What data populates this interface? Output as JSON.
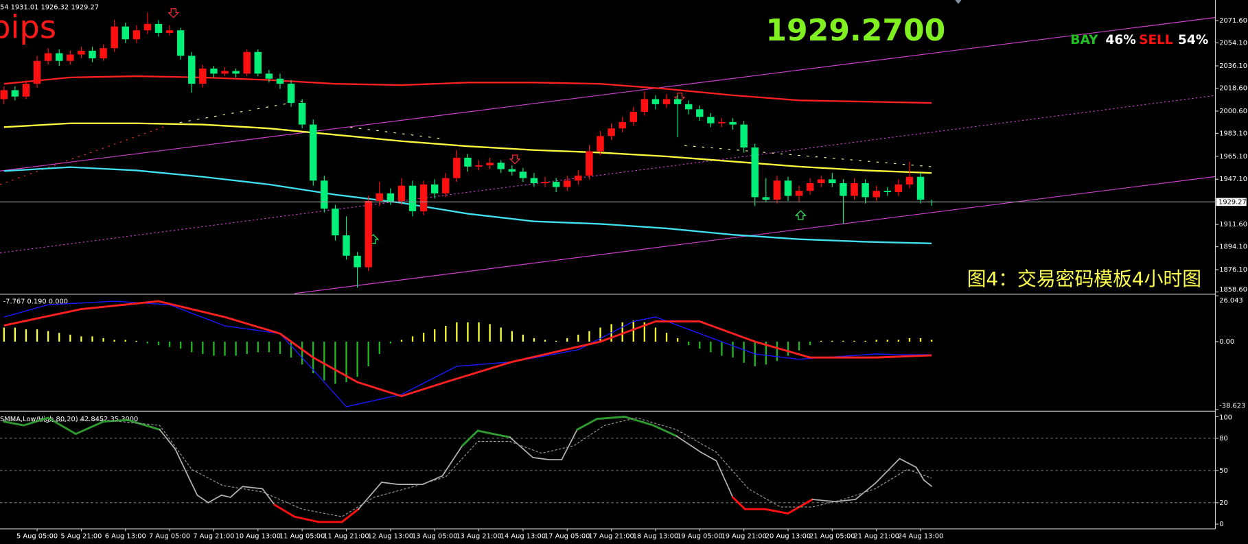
{
  "chart_data": [
    {
      "type": "candlestick",
      "header": "54 1931.01 1926.32 1929.27",
      "annotations": {
        "symbol": "pips",
        "price": "1929.2700",
        "buy_label": "BAY",
        "buy_pct": "46%",
        "sell_label": "SELL",
        "sell_pct": "54%",
        "caption": "图4：交易密码模板4小时图"
      },
      "categories": [
        null,
        null,
        null,
        "5 Aug 05:00",
        null,
        null,
        null,
        "5 Aug 21:00",
        null,
        null,
        null,
        "6 Aug 13:00",
        null,
        null,
        null,
        "7 Aug 05:00",
        null,
        null,
        null,
        "7 Aug 21:00",
        null,
        null,
        null,
        "10 Aug 13:00",
        null,
        null,
        null,
        "11 Aug 05:00",
        null,
        null,
        null,
        "11 Aug 21:00",
        null,
        null,
        null,
        "12 Aug 13:00",
        null,
        null,
        null,
        "13 Aug 05:00",
        null,
        null,
        null,
        "13 Aug 21:00",
        null,
        null,
        null,
        "14 Aug 13:00",
        null,
        null,
        null,
        "17 Aug 05:00",
        null,
        null,
        null,
        "17 Aug 21:00",
        null,
        null,
        null,
        "18 Aug 13:00",
        null,
        null,
        null,
        "19 Aug 05:00",
        null,
        null,
        null,
        "19 Aug 21:00",
        null,
        null,
        null,
        "20 Aug 13:00",
        null,
        null,
        null,
        "21 Aug 05:00",
        null,
        null,
        null,
        "21 Aug 21:00",
        null,
        null,
        null,
        "24 Aug 13:00",
        null
      ],
      "open": [
        2010,
        2017,
        2012,
        2022,
        2040,
        2046,
        2040,
        2045,
        2048,
        2042,
        2050,
        2067,
        2057,
        2064,
        2069,
        2062,
        2064,
        2044,
        2022,
        2034,
        2030,
        2032,
        2030,
        2047,
        2030,
        2026,
        2022,
        2007,
        1990,
        1946,
        1924,
        1903,
        1887,
        1878,
        1930,
        1936,
        1930,
        1942,
        1922,
        1943,
        1936,
        1948,
        1964,
        1957,
        1958,
        1960,
        1955,
        1953,
        1948,
        1944,
        1945,
        1941,
        1946,
        1950,
        1969,
        1981,
        1987,
        1992,
        2000,
        2010,
        2006,
        2010,
        2006,
        2002,
        1996,
        1991,
        1992,
        1990,
        1972,
        1933,
        1931,
        1946,
        1934,
        1938,
        1944,
        1947,
        1944,
        1934,
        1944,
        1933,
        1938,
        1937,
        1943,
        1949,
        1929.54
      ],
      "high": [
        2020,
        2020,
        2025,
        2044,
        2050,
        2049,
        2048,
        2051,
        2051,
        2053,
        2072,
        2070,
        2068,
        2078,
        2072,
        2068,
        2066,
        2047,
        2037,
        2036,
        2035,
        2034,
        2049,
        2049,
        2033,
        2030,
        2025,
        2010,
        1994,
        1950,
        1927,
        1918,
        1890,
        1934,
        1945,
        1940,
        1948,
        1946,
        1946,
        1947,
        1952,
        1970,
        1967,
        1962,
        1964,
        1962,
        1958,
        1956,
        1952,
        1949,
        1948,
        1950,
        1954,
        1974,
        1985,
        1991,
        1996,
        2004,
        2016,
        2013,
        2014,
        2013,
        2009,
        2005,
        1999,
        1995,
        1995,
        1993,
        1975,
        1948,
        1950,
        1949,
        1942,
        1948,
        1950,
        1952,
        1947,
        1948,
        1947,
        1942,
        1941,
        1947,
        1961,
        1952,
        1931.01
      ],
      "low": [
        2006,
        2009,
        2010,
        2019,
        2037,
        2036,
        2037,
        2042,
        2039,
        2040,
        2047,
        2054,
        2054,
        2061,
        2059,
        2060,
        2041,
        2015,
        2019,
        2027,
        2028,
        2027,
        2028,
        2028,
        2023,
        2018,
        2004,
        1987,
        1942,
        1921,
        1899,
        1884,
        1862,
        1875,
        1926,
        1927,
        1927,
        1918,
        1919,
        1932,
        1933,
        1945,
        1953,
        1954,
        1955,
        1952,
        1950,
        1945,
        1941,
        1941,
        1937,
        1938,
        1943,
        1947,
        1966,
        1978,
        1984,
        1989,
        1997,
        2002,
        2003,
        1980,
        1998,
        1993,
        1988,
        1988,
        1986,
        1968,
        1926,
        1929,
        1928,
        1930,
        1929,
        1935,
        1941,
        1941,
        1912,
        1931,
        1928,
        1930,
        1934,
        1934,
        1940,
        1928,
        1926.32
      ],
      "close": [
        2017,
        2012,
        2022,
        2040,
        2046,
        2040,
        2045,
        2048,
        2042,
        2050,
        2067,
        2057,
        2064,
        2069,
        2062,
        2064,
        2044,
        2022,
        2034,
        2030,
        2032,
        2030,
        2047,
        2030,
        2026,
        2022,
        2007,
        1990,
        1946,
        1924,
        1903,
        1887,
        1878,
        1930,
        1936,
        1930,
        1942,
        1922,
        1943,
        1936,
        1948,
        1964,
        1957,
        1958,
        1960,
        1955,
        1953,
        1948,
        1944,
        1945,
        1941,
        1946,
        1950,
        1969,
        1981,
        1987,
        1992,
        2000,
        2010,
        2006,
        2010,
        2006,
        2002,
        1996,
        1991,
        1992,
        1990,
        1972,
        1933,
        1931,
        1946,
        1934,
        1938,
        1944,
        1947,
        1944,
        1934,
        1944,
        1933,
        1938,
        1937,
        1943,
        1949,
        1931,
        1929.27
      ],
      "up_color": "#ff1010",
      "down_color": "#00f07a",
      "lines": [
        {
          "color": "#ff2020",
          "x": [
            0,
            6,
            12,
            18,
            24,
            30,
            36,
            42,
            48,
            54,
            60,
            66,
            72,
            78,
            84
          ],
          "values": [
            2022,
            2027,
            2028,
            2027,
            2025,
            2022,
            2021,
            2023,
            2023,
            2022,
            2018,
            2013,
            2009,
            2008,
            2007
          ]
        },
        {
          "color": "#ffff40",
          "x": [
            0,
            6,
            12,
            18,
            24,
            30,
            36,
            42,
            48,
            54,
            60,
            66,
            72,
            78,
            84
          ],
          "values": [
            1988,
            1991,
            1991,
            1990,
            1987,
            1982,
            1977,
            1973,
            1970,
            1968,
            1965,
            1961,
            1957,
            1954,
            1952
          ]
        },
        {
          "color": "#40e0f0",
          "x": [
            0,
            6,
            12,
            18,
            24,
            30,
            36,
            42,
            48,
            54,
            60,
            66,
            72,
            78,
            84
          ],
          "values": [
            1953.5,
            1956.6,
            1954,
            1949,
            1943,
            1935,
            1928.5,
            1920,
            1914,
            1912,
            1908.5,
            1903.5,
            1900,
            1898,
            1896.7
          ]
        }
      ],
      "price_line": 1929.27,
      "ylim": [
        1857.4,
        2087.8
      ],
      "yticks": [
        {
          "value": 2071.6,
          "label": "2071.60"
        },
        {
          "value": 2054.1,
          "label": "2054.10"
        },
        {
          "value": 2036.1,
          "label": "2036.10"
        },
        {
          "value": 2018.6,
          "label": "2018.60"
        },
        {
          "value": 2000.6,
          "label": "2000.60"
        },
        {
          "value": 1983.1,
          "label": "1983.10"
        },
        {
          "value": 1965.1,
          "label": "1965.10"
        },
        {
          "value": 1947.1,
          "label": "1947.10"
        },
        {
          "value": 1911.6,
          "label": "1911.60"
        },
        {
          "value": 1894.1,
          "label": "1894.10"
        },
        {
          "value": 1876.1,
          "label": "1876.10"
        },
        {
          "value": 1858.6,
          "label": "1858.60"
        }
      ]
    },
    {
      "type": "macd",
      "header": "-7.767 0.190 0.000",
      "values": [
        8,
        8,
        7,
        7,
        6,
        5,
        4,
        3,
        3,
        2,
        1,
        1,
        0.5,
        -1,
        -2,
        -3,
        -4,
        -6,
        -7,
        -8,
        -8,
        -8,
        -7,
        -6,
        -6,
        -7,
        -9,
        -13,
        -18,
        -22,
        -24,
        -23,
        -20,
        -14,
        -7,
        -1,
        1,
        3,
        5,
        7,
        9,
        11,
        11,
        11,
        10,
        8,
        6,
        4,
        2,
        1,
        0.5,
        2,
        4,
        6,
        8,
        10,
        11,
        12,
        11,
        8,
        5,
        2,
        -2,
        -4,
        -6,
        -8,
        -9,
        -12,
        -14,
        -13,
        -11,
        -8,
        -5,
        -2,
        0.5,
        0.5,
        0.5,
        0.5,
        0.5,
        1,
        1,
        1,
        2,
        2,
        1
      ],
      "pos_color": "#ffff30",
      "neg_color": "#22b822",
      "series": [
        {
          "color": "#1a1aff",
          "x": [
            0,
            4,
            10,
            15,
            20,
            25,
            28,
            31,
            36,
            41,
            46,
            52,
            57,
            59,
            63,
            68,
            72,
            79,
            81,
            84
          ],
          "values": [
            14,
            21,
            23,
            21,
            9,
            4.6,
            -16,
            -37,
            -30,
            -14,
            -11.5,
            -4.6,
            11.5,
            14,
            4.6,
            -7,
            -10,
            -7,
            -7.4,
            -7.4
          ]
        },
        {
          "color": "#ff2020",
          "x": [
            0,
            7,
            14,
            20,
            25,
            28,
            32,
            36,
            40,
            46,
            54,
            59,
            63,
            68,
            73,
            79,
            84
          ],
          "values": [
            9.2,
            18.5,
            23,
            14,
            4.6,
            -9,
            -23,
            -31,
            -23,
            -11.5,
            0,
            11.5,
            11.5,
            0,
            -9,
            -9,
            -7.767
          ]
        }
      ],
      "ylim": [
        -38.623,
        26.043
      ],
      "yticks": [
        -38.623,
        {
          "value": 0,
          "label": "0.00"
        },
        26.043
      ]
    },
    {
      "type": "stochastic",
      "header": "SMMA,Low/High,80,20) 42.8452 35.3000",
      "overbought": 80,
      "oversold": 20,
      "grid_style": "dashed",
      "series": [
        {
          "color": "#b4b4b4",
          "upper_color": "#2f9a2f",
          "lower_color": "#ff1010",
          "style": "solid",
          "x": [
            0,
            1.8,
            4,
            6.5,
            9,
            11.2,
            14.1,
            15.5,
            17.5,
            18.5,
            19.7,
            20.5,
            21.6,
            23.4,
            24.5,
            26.3,
            28.5,
            30.6,
            32.1,
            34.2,
            35.7,
            37.9,
            39.7,
            41.5,
            42.9,
            44.3,
            45.8,
            47.9,
            49.4,
            50.5,
            51.9,
            53.7,
            56.2,
            58.8,
            60.9,
            63.1,
            64.5,
            66,
            67.1,
            68.9,
            71,
            73.2,
            75.3,
            77.1,
            78.9,
            81.1,
            82.6,
            83.3,
            84
          ],
          "values": [
            95.5,
            92,
            99,
            84,
            95.5,
            97,
            88,
            70,
            27,
            20,
            27,
            25,
            35,
            33,
            18,
            7,
            2,
            2,
            14,
            39,
            37,
            37,
            45,
            73,
            87,
            84,
            81,
            62,
            60,
            60,
            88,
            98,
            100,
            92,
            82,
            67,
            59,
            25,
            14,
            14,
            10,
            23,
            21,
            23,
            38,
            61,
            53,
            41,
            35.3
          ]
        },
        {
          "color": "#9a9a9a",
          "style": "dashed",
          "x": [
            0,
            4,
            9,
            14.1,
            17,
            19.8,
            23.4,
            27,
            30.6,
            33.5,
            37.1,
            40,
            42.9,
            45.8,
            48.7,
            51.6,
            54.4,
            57.3,
            60.9,
            64.5,
            67.4,
            70.3,
            73.2,
            76,
            78.9,
            81.8,
            84
          ],
          "values": [
            97,
            95.5,
            97,
            92,
            51,
            36,
            30,
            14,
            7,
            25,
            35,
            44,
            77,
            77,
            66,
            73,
            92,
            99,
            88,
            67,
            33,
            16,
            16,
            23,
            33,
            51,
            42.8452
          ]
        }
      ],
      "ylim": [
        -4.4,
        103.7
      ],
      "yticks": [
        0,
        20,
        50,
        80,
        100
      ]
    }
  ]
}
